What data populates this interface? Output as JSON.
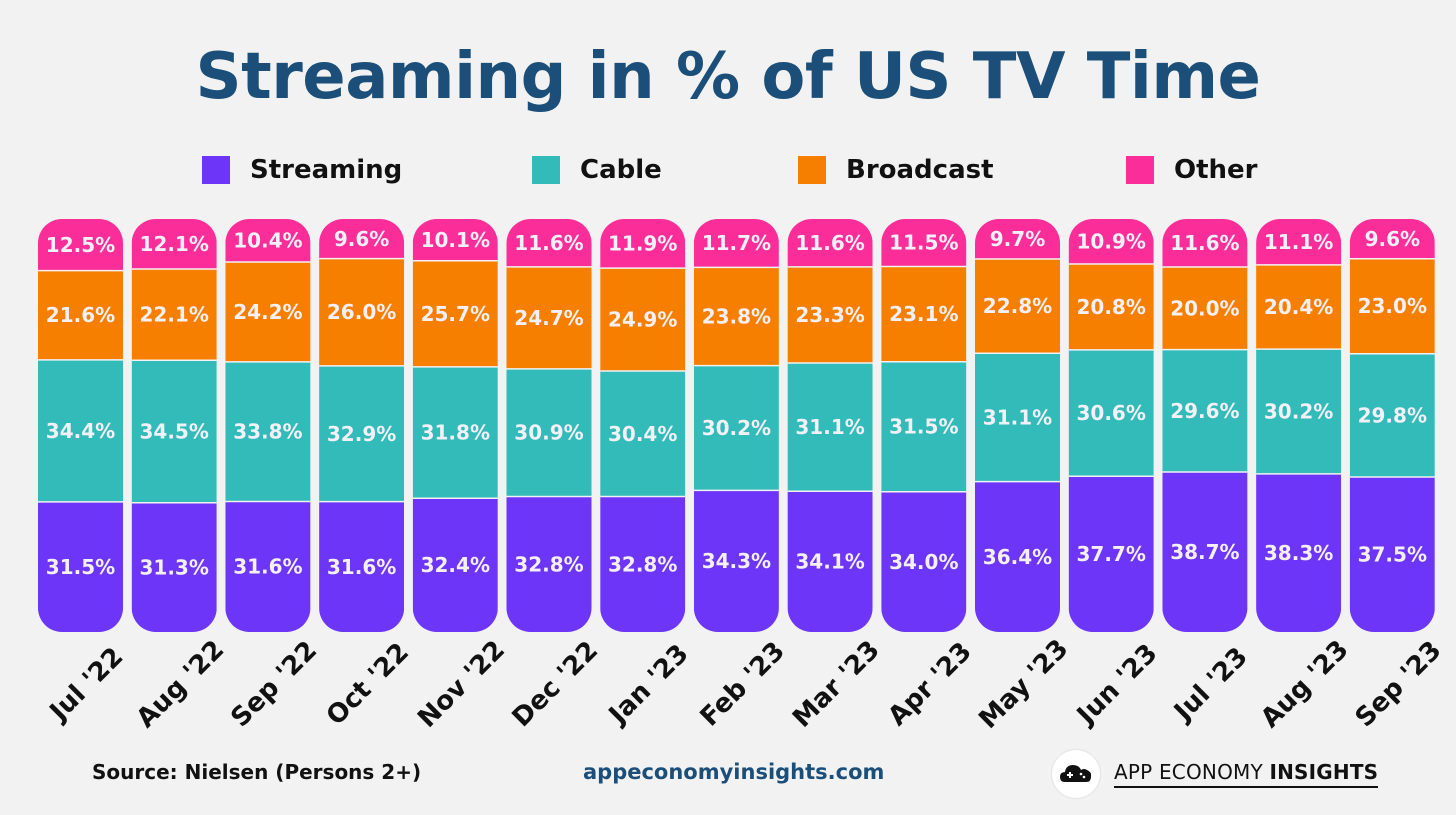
{
  "title": "Streaming in % of US TV Time",
  "legend": [
    {
      "label": "Streaming",
      "color": "#6c35f7"
    },
    {
      "label": "Cable",
      "color": "#32bbb8"
    },
    {
      "label": "Broadcast",
      "color": "#f77f00"
    },
    {
      "label": "Other",
      "color": "#fb2d98"
    }
  ],
  "chart_data": {
    "type": "bar",
    "stacked": true,
    "title": "Streaming in % of US TV Time",
    "unit": "%",
    "categories": [
      "Jul '22",
      "Aug '22",
      "Sep '22",
      "Oct '22",
      "Nov '22",
      "Dec '22",
      "Jan '23",
      "Feb '23",
      "Mar '23",
      "Apr '23",
      "May '23",
      "Jun '23",
      "Jul '23",
      "Aug '23",
      "Sep '23"
    ],
    "series": [
      {
        "name": "Streaming",
        "color": "#6c35f7",
        "values": [
          31.5,
          31.3,
          31.6,
          31.6,
          32.4,
          32.8,
          32.8,
          34.3,
          34.1,
          34.0,
          36.4,
          37.7,
          38.7,
          38.3,
          37.5
        ]
      },
      {
        "name": "Cable",
        "color": "#32bbb8",
        "values": [
          34.4,
          34.5,
          33.8,
          32.9,
          31.8,
          30.9,
          30.4,
          30.2,
          31.1,
          31.5,
          31.1,
          30.6,
          29.6,
          30.2,
          29.8
        ]
      },
      {
        "name": "Broadcast",
        "color": "#f77f00",
        "values": [
          21.6,
          22.1,
          24.2,
          26.0,
          25.7,
          24.7,
          24.9,
          23.8,
          23.3,
          23.1,
          22.8,
          20.8,
          20.0,
          20.4,
          23.0
        ]
      },
      {
        "name": "Other",
        "color": "#fb2d98",
        "values": [
          12.5,
          12.1,
          10.4,
          9.6,
          10.1,
          11.6,
          11.9,
          11.7,
          11.6,
          11.5,
          9.7,
          10.9,
          11.6,
          11.1,
          9.6
        ]
      }
    ],
    "data_labels": [
      [
        "31.5%",
        "31.3%",
        "31.6%",
        "31.6%",
        "32.4%",
        "32.8%",
        "32.8%",
        "34.3%",
        "34.1%",
        "34.0%",
        "36.4%",
        "37.7%",
        "38.7%",
        "38.3%",
        "37.5%"
      ],
      [
        "34.4%",
        "34.5%",
        "33.8%",
        "32.9%",
        "31.8%",
        "30.9%",
        "30.4%",
        "30.2%",
        "31.1%",
        "31.5%",
        "31.1%",
        "30.6%",
        "29.6%",
        "30.2%",
        "29.8%"
      ],
      [
        "21.6%",
        "22.1%",
        "24.2%",
        "26.0%",
        "25.7%",
        "24.7%",
        "24.9%",
        "23.8%",
        "23.3%",
        "23.1%",
        "22.8%",
        "20.8%",
        "20.0%",
        "20.4%",
        "23.0%"
      ],
      [
        "12.5%",
        "12.1%",
        "10.4%",
        "9.6%",
        "10.1%",
        "11.6%",
        "11.9%",
        "11.7%",
        "11.6%",
        "11.5%",
        "9.7%",
        "10.9%",
        "11.6%",
        "11.1%",
        "9.6%"
      ]
    ],
    "legend_position": "top"
  },
  "footer": {
    "source": "Source: Nielsen (Persons 2+)",
    "url": "appeconomyinsights.com",
    "brand_regular": "APP ECONOMY",
    "brand_bold": "INSIGHTS"
  }
}
